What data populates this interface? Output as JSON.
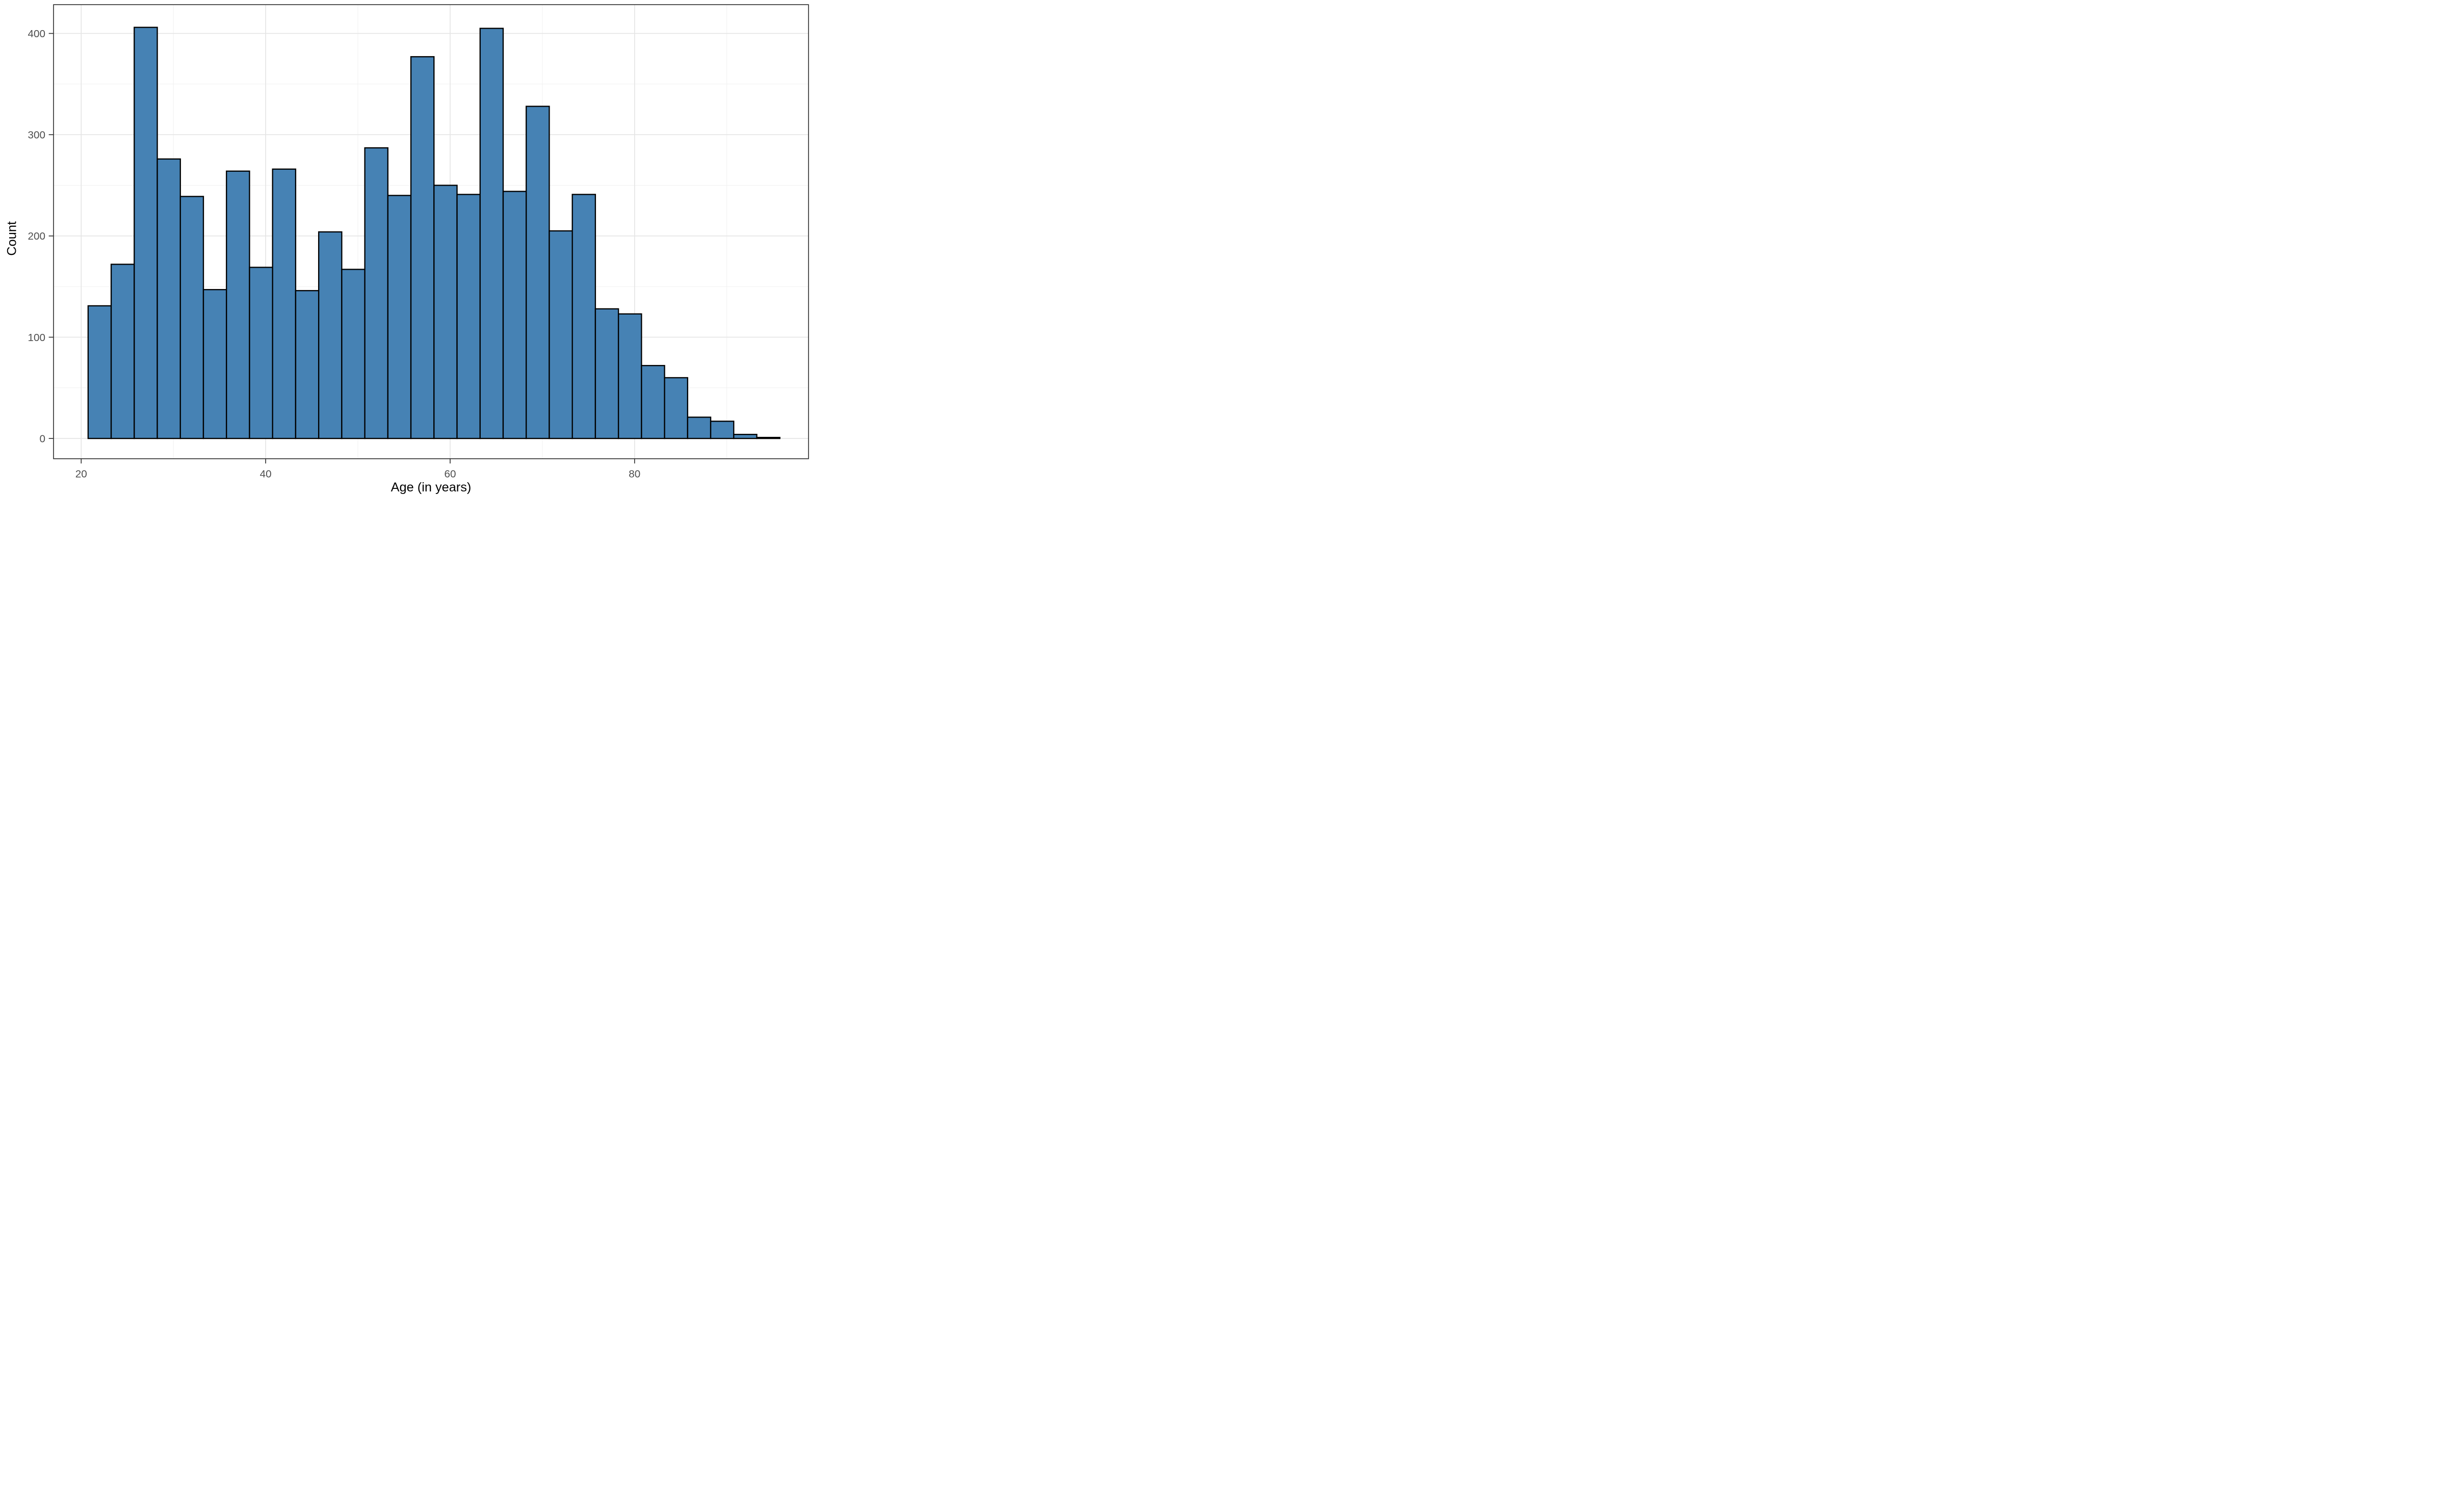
{
  "chart_data": {
    "type": "histogram",
    "title": "",
    "xlabel": "Age (in years)",
    "ylabel": "Count",
    "bin_start": 20.75,
    "bin_width": 2.5,
    "counts": [
      131,
      172,
      406,
      276,
      239,
      147,
      264,
      169,
      266,
      146,
      204,
      167,
      287,
      240,
      377,
      250,
      241,
      405,
      244,
      328,
      205,
      241,
      128,
      123,
      72,
      60,
      21,
      17,
      4,
      1
    ],
    "x_ticks": [
      20,
      40,
      60,
      80
    ],
    "x_minor_ticks": [
      30,
      50,
      70,
      90
    ],
    "y_ticks": [
      0,
      100,
      200,
      300,
      400
    ],
    "y_minor_ticks": [
      50,
      150,
      250,
      350
    ],
    "xlim": [
      17.0,
      98.86
    ],
    "ylim": [
      -20,
      428.4
    ],
    "legend": "none",
    "grid": "major+minor",
    "colors": {
      "bar_fill": "#4682B4",
      "bar_stroke": "#000000",
      "panel_background": "#ffffff",
      "figure_background": "#ffffff",
      "panel_border": "#333333",
      "grid_major": "#e5e5e5",
      "grid_minor": "#f0f0f0",
      "tick_mark": "#333333",
      "tick_label": "#4d4d4d",
      "axis_title": "#000000"
    }
  }
}
